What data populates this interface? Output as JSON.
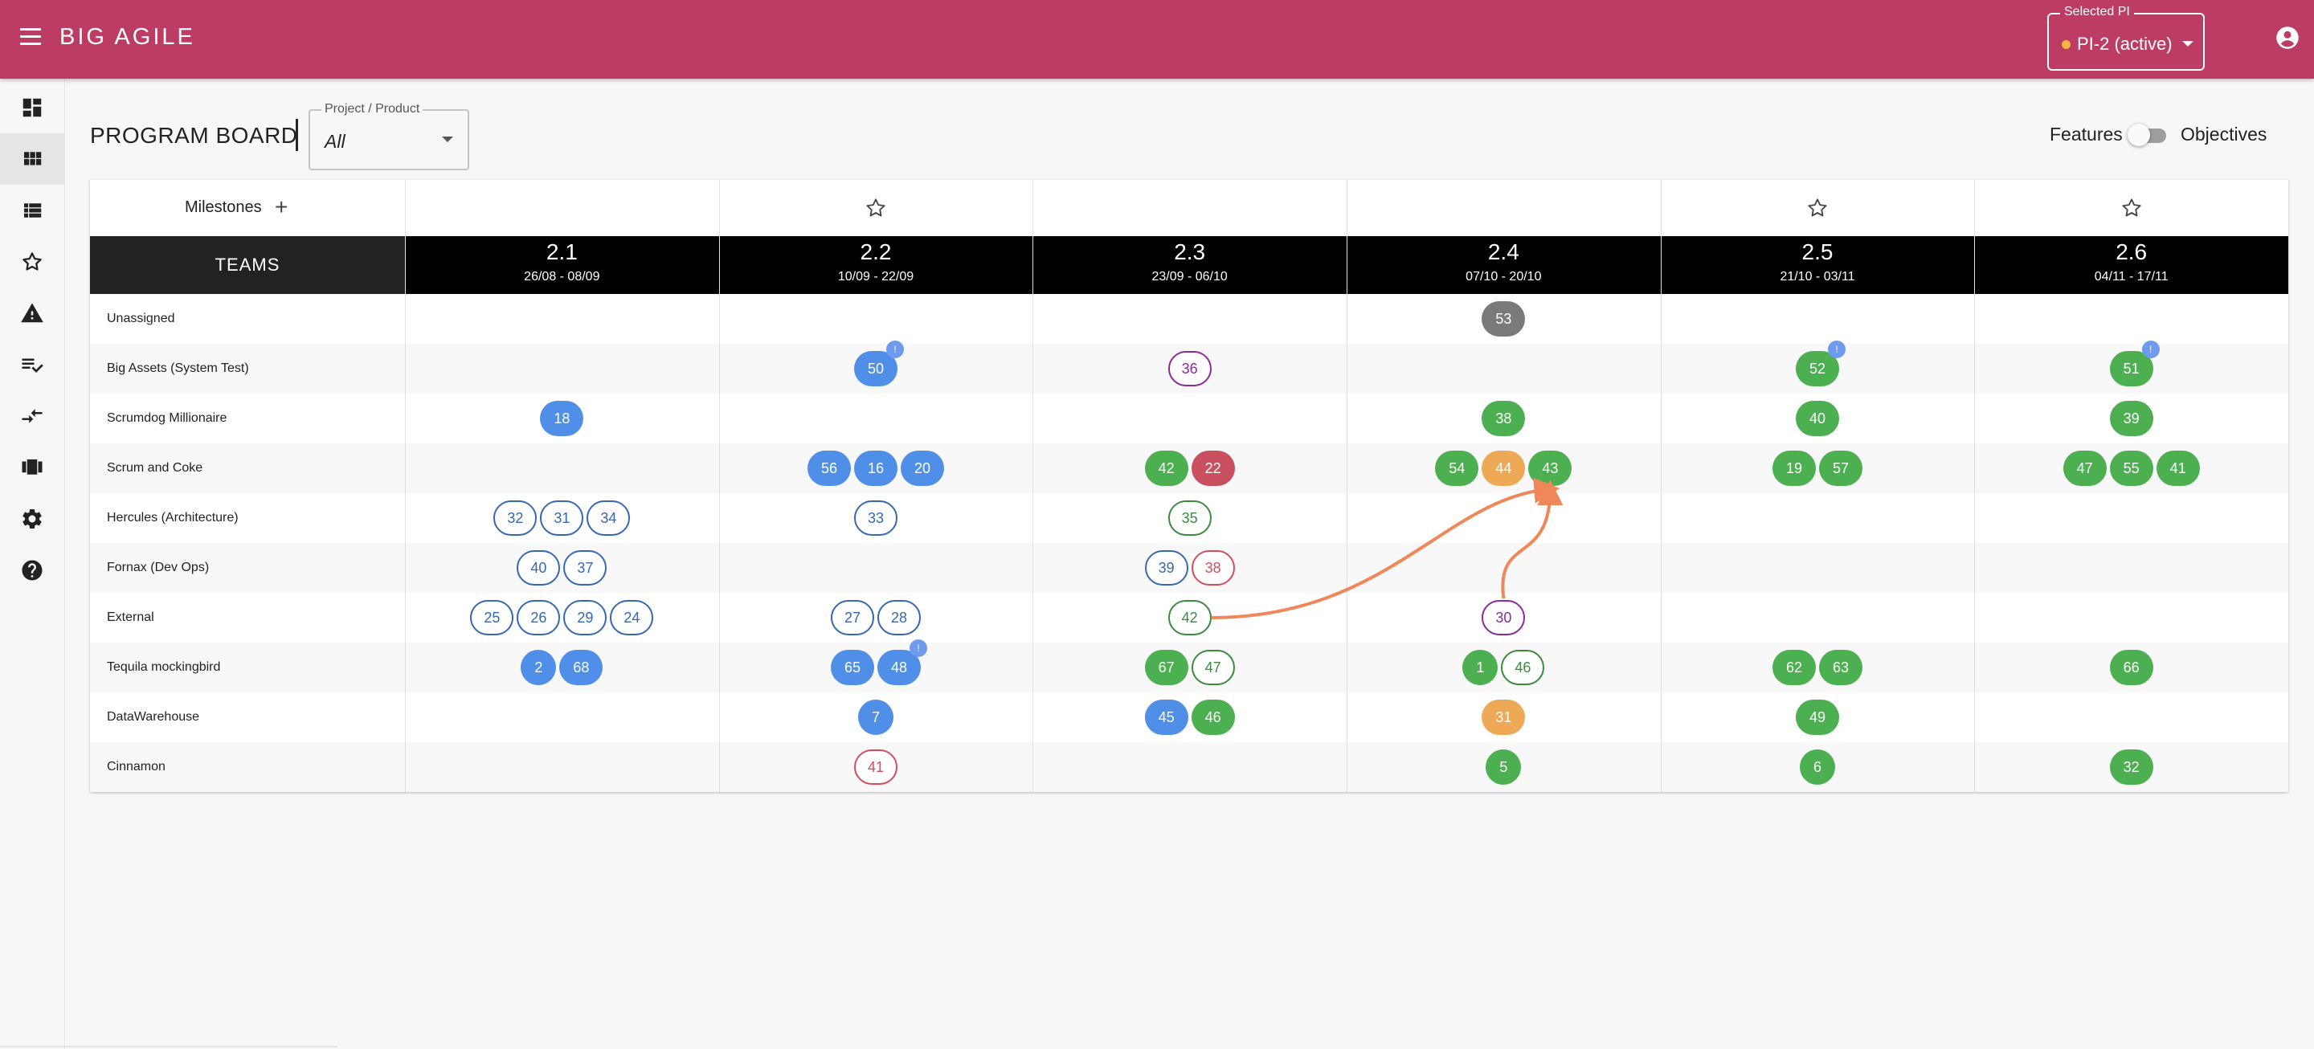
{
  "app": {
    "title": "BIG AGILE"
  },
  "pi_select": {
    "label": "Selected PI",
    "value": "PI-2 (active)",
    "status_color": "#f5b444"
  },
  "colors": {
    "brand": "#bc3c64",
    "feature_blue": "#4f8fe8",
    "feature_green": "#4caf50",
    "feature_red": "#c9505e",
    "feature_orange": "#eea957",
    "dependency_arrow": "#ef8759"
  },
  "sidebar": {
    "items": [
      {
        "name": "dashboard-icon"
      },
      {
        "name": "program-board-icon",
        "active": true
      },
      {
        "name": "list-icon"
      },
      {
        "name": "star-icon"
      },
      {
        "name": "warning-icon"
      },
      {
        "name": "checklist-icon"
      },
      {
        "name": "dependency-icon"
      },
      {
        "name": "team-icon"
      },
      {
        "name": "settings-icon"
      },
      {
        "name": "help-icon"
      }
    ]
  },
  "page": {
    "title": "PROGRAM BOARD",
    "project_filter": {
      "label": "Project / Product",
      "value": "All"
    },
    "toggle": {
      "left": "Features",
      "right": "Objectives"
    }
  },
  "board": {
    "milestones_label": "Milestones",
    "add_milestone": "+",
    "teams_header": "TEAMS",
    "sprints": [
      {
        "name": "2.1",
        "dates": "26/08 - 08/09",
        "milestone": false
      },
      {
        "name": "2.2",
        "dates": "10/09 - 22/09",
        "milestone": true
      },
      {
        "name": "2.3",
        "dates": "23/09 - 06/10",
        "milestone": false
      },
      {
        "name": "2.4",
        "dates": "07/10 - 20/10",
        "milestone": false
      },
      {
        "name": "2.5",
        "dates": "21/10 - 03/11",
        "milestone": true
      },
      {
        "name": "2.6",
        "dates": "04/11 - 17/11",
        "milestone": true
      }
    ],
    "teams": [
      {
        "name": "Unassigned"
      },
      {
        "name": "Big Assets (System Test)"
      },
      {
        "name": "Scrumdog Millionaire"
      },
      {
        "name": "Scrum and Coke"
      },
      {
        "name": "Hercules (Architecture)"
      },
      {
        "name": "Fornax (Dev Ops)"
      },
      {
        "name": "External"
      },
      {
        "name": "Tequila mockingbird"
      },
      {
        "name": "DataWarehouse"
      },
      {
        "name": "Cinnamon"
      }
    ],
    "tickets": [
      {
        "team": 0,
        "sprint": 3,
        "label": "53",
        "style": "gray"
      },
      {
        "team": 1,
        "sprint": 1,
        "label": "50",
        "style": "blue",
        "badge": "!"
      },
      {
        "team": 1,
        "sprint": 2,
        "label": "36",
        "style": "opurple"
      },
      {
        "team": 1,
        "sprint": 4,
        "label": "52",
        "style": "green",
        "badge": "!"
      },
      {
        "team": 1,
        "sprint": 5,
        "label": "51",
        "style": "green",
        "badge": "!"
      },
      {
        "team": 2,
        "sprint": 0,
        "label": "18",
        "style": "blue"
      },
      {
        "team": 2,
        "sprint": 3,
        "label": "38",
        "style": "green"
      },
      {
        "team": 2,
        "sprint": 4,
        "label": "40",
        "style": "green"
      },
      {
        "team": 2,
        "sprint": 5,
        "label": "39",
        "style": "green"
      },
      {
        "team": 3,
        "sprint": 1,
        "label": "56",
        "style": "blue"
      },
      {
        "team": 3,
        "sprint": 1,
        "label": "16",
        "style": "blue"
      },
      {
        "team": 3,
        "sprint": 1,
        "label": "20",
        "style": "blue"
      },
      {
        "team": 3,
        "sprint": 2,
        "label": "42",
        "style": "green"
      },
      {
        "team": 3,
        "sprint": 2,
        "label": "22",
        "style": "red"
      },
      {
        "team": 3,
        "sprint": 3,
        "label": "54",
        "style": "green"
      },
      {
        "team": 3,
        "sprint": 3,
        "label": "44",
        "style": "orange"
      },
      {
        "team": 3,
        "sprint": 3,
        "label": "43",
        "style": "green"
      },
      {
        "team": 3,
        "sprint": 4,
        "label": "19",
        "style": "green"
      },
      {
        "team": 3,
        "sprint": 4,
        "label": "57",
        "style": "green"
      },
      {
        "team": 3,
        "sprint": 5,
        "label": "47",
        "style": "green"
      },
      {
        "team": 3,
        "sprint": 5,
        "label": "55",
        "style": "green"
      },
      {
        "team": 3,
        "sprint": 5,
        "label": "41",
        "style": "green"
      },
      {
        "team": 4,
        "sprint": 0,
        "label": "32",
        "style": "oblue"
      },
      {
        "team": 4,
        "sprint": 0,
        "label": "31",
        "style": "oblue"
      },
      {
        "team": 4,
        "sprint": 0,
        "label": "34",
        "style": "oblue"
      },
      {
        "team": 4,
        "sprint": 1,
        "label": "33",
        "style": "oblue"
      },
      {
        "team": 4,
        "sprint": 2,
        "label": "35",
        "style": "ogreen"
      },
      {
        "team": 5,
        "sprint": 0,
        "label": "40",
        "style": "oblue"
      },
      {
        "team": 5,
        "sprint": 0,
        "label": "37",
        "style": "oblue"
      },
      {
        "team": 5,
        "sprint": 2,
        "label": "39",
        "style": "oblue"
      },
      {
        "team": 5,
        "sprint": 2,
        "label": "38",
        "style": "ored"
      },
      {
        "team": 6,
        "sprint": 0,
        "label": "25",
        "style": "oblue"
      },
      {
        "team": 6,
        "sprint": 0,
        "label": "26",
        "style": "oblue"
      },
      {
        "team": 6,
        "sprint": 0,
        "label": "29",
        "style": "oblue"
      },
      {
        "team": 6,
        "sprint": 0,
        "label": "24",
        "style": "oblue"
      },
      {
        "team": 6,
        "sprint": 1,
        "label": "27",
        "style": "oblue"
      },
      {
        "team": 6,
        "sprint": 1,
        "label": "28",
        "style": "oblue"
      },
      {
        "team": 6,
        "sprint": 2,
        "label": "42",
        "style": "ogreen"
      },
      {
        "team": 6,
        "sprint": 3,
        "label": "30",
        "style": "opurple"
      },
      {
        "team": 7,
        "sprint": 0,
        "label": "2",
        "style": "blue"
      },
      {
        "team": 7,
        "sprint": 0,
        "label": "68",
        "style": "blue"
      },
      {
        "team": 7,
        "sprint": 1,
        "label": "65",
        "style": "blue"
      },
      {
        "team": 7,
        "sprint": 1,
        "label": "48",
        "style": "blue",
        "badge": "!"
      },
      {
        "team": 7,
        "sprint": 2,
        "label": "67",
        "style": "green"
      },
      {
        "team": 7,
        "sprint": 2,
        "label": "47",
        "style": "ogreen"
      },
      {
        "team": 7,
        "sprint": 3,
        "label": "1",
        "style": "green"
      },
      {
        "team": 7,
        "sprint": 3,
        "label": "46",
        "style": "ogreen"
      },
      {
        "team": 7,
        "sprint": 4,
        "label": "62",
        "style": "green"
      },
      {
        "team": 7,
        "sprint": 4,
        "label": "63",
        "style": "green"
      },
      {
        "team": 7,
        "sprint": 5,
        "label": "66",
        "style": "green"
      },
      {
        "team": 8,
        "sprint": 1,
        "label": "7",
        "style": "blue"
      },
      {
        "team": 8,
        "sprint": 2,
        "label": "45",
        "style": "blue"
      },
      {
        "team": 8,
        "sprint": 2,
        "label": "46",
        "style": "green"
      },
      {
        "team": 8,
        "sprint": 3,
        "label": "31",
        "style": "orange"
      },
      {
        "team": 8,
        "sprint": 4,
        "label": "49",
        "style": "green"
      },
      {
        "team": 9,
        "sprint": 1,
        "label": "41",
        "style": "ored"
      },
      {
        "team": 9,
        "sprint": 3,
        "label": "5",
        "style": "green"
      },
      {
        "team": 9,
        "sprint": 4,
        "label": "6",
        "style": "green"
      },
      {
        "team": 9,
        "sprint": 5,
        "label": "32",
        "style": "green"
      }
    ],
    "dependencies": [
      {
        "from": {
          "team": 6,
          "sprint": 2,
          "label": "42"
        },
        "to": {
          "team": 3,
          "sprint": 3,
          "label": "43"
        }
      },
      {
        "from": {
          "team": 6,
          "sprint": 3,
          "label": "30"
        },
        "to": {
          "team": 3,
          "sprint": 3,
          "label": "43"
        }
      }
    ]
  }
}
